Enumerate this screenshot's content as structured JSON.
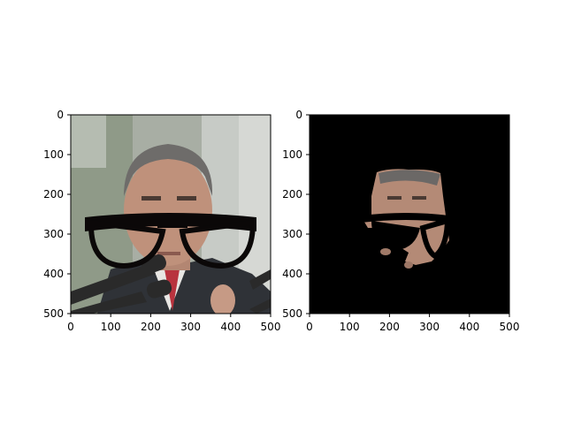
{
  "figure": {
    "background": "#ffffff",
    "panels": [
      {
        "id": "left",
        "content": "photo of a man in a suit speaking at microphones with a drawn pair of black glasses overlaid",
        "x_ticks": [
          "0",
          "100",
          "200",
          "300",
          "400",
          "500"
        ],
        "y_ticks": [
          "0",
          "100",
          "200",
          "300",
          "400",
          "500"
        ],
        "xlim": [
          0,
          500
        ],
        "ylim": [
          0,
          500
        ]
      },
      {
        "id": "right",
        "content": "black background with a segmented face region and a black glasses-shaped cutout",
        "x_ticks": [
          "0",
          "100",
          "200",
          "300",
          "400",
          "500"
        ],
        "y_ticks": [
          "0",
          "100",
          "200",
          "300",
          "400",
          "500"
        ],
        "xlim": [
          0,
          500
        ],
        "ylim": [
          0,
          500
        ]
      }
    ],
    "colors": {
      "axis": "#000000",
      "glasses": "#0b0808",
      "background_black": "#000000",
      "skin": "#b98d78",
      "hair": "#6d6c6b",
      "suit": "#2f3237",
      "photo_bg": "#a9b0a4"
    }
  }
}
